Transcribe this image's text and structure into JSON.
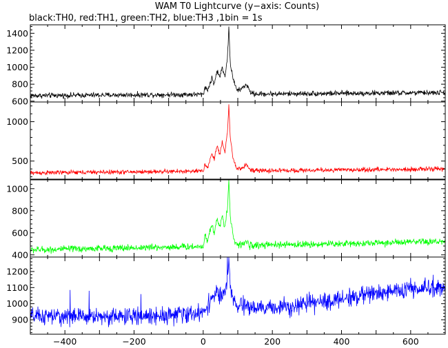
{
  "title": "WAM T0 Lightcurve (y−axis: Counts)",
  "subtitle": "black:TH0, red:TH1, green:TH2, blue:TH3 ,1bin = 1s",
  "chart_data": [
    {
      "type": "line",
      "series_label": "TH0",
      "color": "#000000",
      "xlim": [
        -500,
        700
      ],
      "ylim": [
        590,
        1500
      ],
      "yticks": [
        600,
        800,
        1000,
        1200,
        1400
      ],
      "baseline_start": 665,
      "baseline_end": 700,
      "noise": 22,
      "burst": [
        [
          0,
          650
        ],
        [
          5,
          780
        ],
        [
          12,
          720
        ],
        [
          25,
          870
        ],
        [
          32,
          800
        ],
        [
          40,
          960
        ],
        [
          48,
          880
        ],
        [
          55,
          1000
        ],
        [
          63,
          900
        ],
        [
          70,
          1100
        ],
        [
          74,
          1480
        ],
        [
          78,
          1050
        ],
        [
          85,
          900
        ],
        [
          92,
          780
        ],
        [
          100,
          720
        ],
        [
          115,
          760
        ],
        [
          125,
          800
        ],
        [
          135,
          710
        ],
        [
          150,
          680
        ],
        [
          170,
          670
        ]
      ],
      "grid": false
    },
    {
      "type": "line",
      "series_label": "TH1",
      "color": "#ff0000",
      "xlim": [
        -500,
        700
      ],
      "ylim": [
        270,
        1250
      ],
      "yticks": [
        500,
        1000
      ],
      "baseline_start": 350,
      "baseline_end": 400,
      "noise": 20,
      "burst": [
        [
          0,
          340
        ],
        [
          5,
          480
        ],
        [
          12,
          400
        ],
        [
          25,
          600
        ],
        [
          32,
          520
        ],
        [
          40,
          700
        ],
        [
          48,
          580
        ],
        [
          55,
          750
        ],
        [
          63,
          620
        ],
        [
          70,
          860
        ],
        [
          74,
          1220
        ],
        [
          78,
          800
        ],
        [
          85,
          560
        ],
        [
          92,
          450
        ],
        [
          100,
          390
        ],
        [
          115,
          420
        ],
        [
          125,
          460
        ],
        [
          135,
          390
        ],
        [
          150,
          370
        ],
        [
          170,
          360
        ]
      ],
      "grid": false
    },
    {
      "type": "line",
      "series_label": "TH2",
      "color": "#00ff00",
      "xlim": [
        -500,
        700
      ],
      "ylim": [
        380,
        1080
      ],
      "yticks": [
        400,
        600,
        800,
        1000
      ],
      "baseline_start": 445,
      "baseline_end": 520,
      "noise": 22,
      "burst": [
        [
          0,
          450
        ],
        [
          5,
          600
        ],
        [
          12,
          520
        ],
        [
          25,
          680
        ],
        [
          32,
          600
        ],
        [
          40,
          730
        ],
        [
          48,
          640
        ],
        [
          55,
          760
        ],
        [
          63,
          660
        ],
        [
          70,
          820
        ],
        [
          74,
          1080
        ],
        [
          78,
          760
        ],
        [
          85,
          600
        ],
        [
          92,
          520
        ],
        [
          100,
          480
        ],
        [
          115,
          500
        ],
        [
          125,
          520
        ],
        [
          135,
          480
        ],
        [
          150,
          470
        ],
        [
          170,
          460
        ]
      ],
      "grid": false
    },
    {
      "type": "line",
      "series_label": "TH3",
      "color": "#0000ff",
      "xlim": [
        -500,
        700
      ],
      "ylim": [
        810,
        1290
      ],
      "yticks": [
        900,
        1000,
        1100,
        1200
      ],
      "baseline_points": [
        [
          -500,
          920
        ],
        [
          -200,
          920
        ],
        [
          0,
          940
        ],
        [
          200,
          975
        ],
        [
          350,
          1010
        ],
        [
          450,
          1050
        ],
        [
          550,
          1080
        ],
        [
          700,
          1100
        ]
      ],
      "noise": 38,
      "spikes": [
        [
          -385,
          1085
        ],
        [
          -330,
          1080
        ],
        [
          -180,
          1060
        ],
        [
          70,
          1290
        ],
        [
          40,
          1100
        ],
        [
          360,
          1050
        ],
        [
          600,
          1160
        ],
        [
          665,
          1180
        ]
      ],
      "burst": [
        [
          0,
          950
        ],
        [
          20,
          1020
        ],
        [
          40,
          1070
        ],
        [
          55,
          1030
        ],
        [
          70,
          1120
        ],
        [
          74,
          1290
        ],
        [
          80,
          1050
        ],
        [
          100,
          980
        ],
        [
          130,
          990
        ],
        [
          160,
          960
        ]
      ],
      "grid": false
    }
  ],
  "x_axis": {
    "ticks": [
      -400,
      -200,
      0,
      200,
      400,
      600
    ],
    "tick_labels": [
      "−400",
      "−200",
      "0",
      "200",
      "400",
      "600"
    ]
  }
}
